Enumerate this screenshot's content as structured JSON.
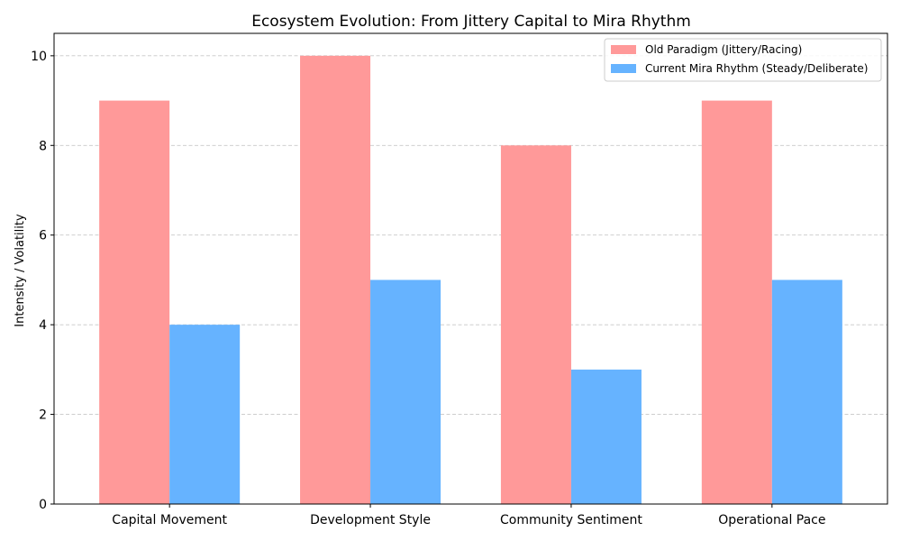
{
  "chart_data": {
    "type": "bar",
    "title": "Ecosystem Evolution: From Jittery Capital to Mira Rhythm",
    "xlabel": "",
    "ylabel": "Intensity / Volatility",
    "categories": [
      "Capital Movement",
      "Development Style",
      "Community Sentiment",
      "Operational Pace"
    ],
    "series": [
      {
        "name": "Old Paradigm (Jittery/Racing)",
        "values": [
          9,
          10,
          8,
          9
        ],
        "color": "#ff9999"
      },
      {
        "name": "Current Mira Rhythm (Steady/Deliberate)",
        "values": [
          4,
          5,
          3,
          5
        ],
        "color": "#66b3ff"
      }
    ],
    "ylim": [
      0,
      10.5
    ],
    "yticks": [
      0,
      2,
      4,
      6,
      8,
      10
    ],
    "grid": true,
    "grid_axis": "y",
    "legend_position": "top-right"
  }
}
